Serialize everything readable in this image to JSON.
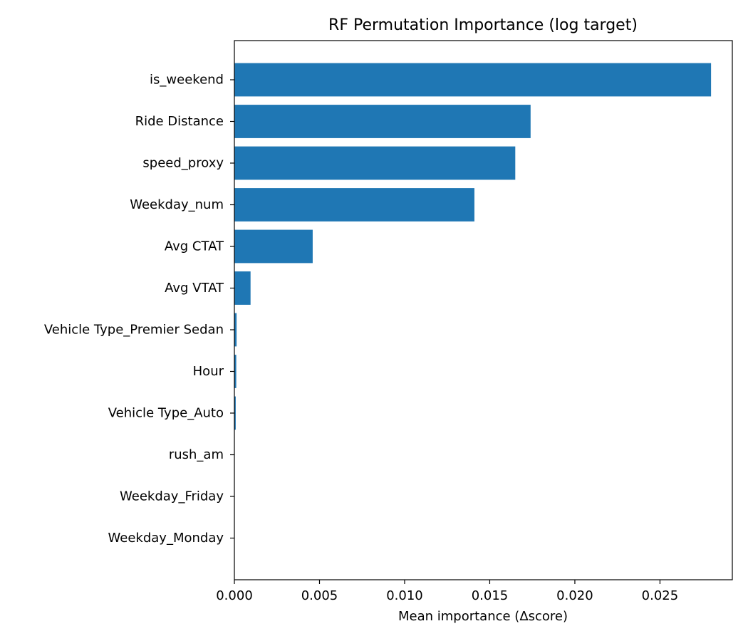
{
  "chart_data": {
    "type": "bar",
    "orientation": "horizontal",
    "title": "RF Permutation Importance (log target)",
    "xlabel": "Mean importance (Δscore)",
    "ylabel": "",
    "categories": [
      "is_weekend",
      "Ride Distance",
      "speed_proxy",
      "Weekday_num",
      "Avg CTAT",
      "Avg VTAT",
      "Vehicle Type_Premier Sedan",
      "Hour",
      "Vehicle Type_Auto",
      "rush_am",
      "Weekday_Friday",
      "Weekday_Monday"
    ],
    "values": [
      0.028,
      0.0174,
      0.0165,
      0.0141,
      0.0046,
      0.00095,
      0.00013,
      0.00011,
      8e-05,
      1e-05,
      5e-06,
      3e-06
    ],
    "xlim": [
      0.0,
      0.02925
    ],
    "xticks": [
      0.0,
      0.005,
      0.01,
      0.015,
      0.02,
      0.025
    ],
    "xtick_labels": [
      "0.000",
      "0.005",
      "0.010",
      "0.015",
      "0.020",
      "0.025"
    ],
    "bar_color": "#1f77b4",
    "grid": false,
    "legend": "none"
  }
}
